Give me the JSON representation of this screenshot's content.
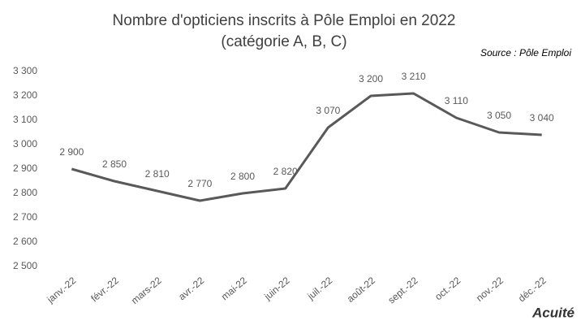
{
  "chart_data": {
    "type": "line",
    "title": "Nombre d'opticiens inscrits à Pôle Emploi en 2022",
    "subtitle": "(catégorie A, B, C)",
    "source": "Source : Pôle Emploi",
    "logo": "Acuité",
    "categories": [
      "janv.-22",
      "févr.-22",
      "mars-22",
      "avr.-22",
      "mai-22",
      "juin-22",
      "juil.-22",
      "août-22",
      "sept.-22",
      "oct.-22",
      "nov.-22",
      "déc.-22"
    ],
    "values": [
      2900,
      2850,
      2810,
      2770,
      2800,
      2820,
      3070,
      3200,
      3210,
      3110,
      3050,
      3040
    ],
    "value_labels": [
      "2 900",
      "2 850",
      "2 810",
      "2 770",
      "2 800",
      "2 820",
      "3 070",
      "3 200",
      "3 210",
      "3 110",
      "3 050",
      "3 040"
    ],
    "color": "#595959",
    "ylim": [
      2500,
      3300
    ],
    "yticks": [
      {
        "value": 2500,
        "label": "2 500"
      },
      {
        "value": 2600,
        "label": "2 600"
      },
      {
        "value": 2700,
        "label": "2 700"
      },
      {
        "value": 2800,
        "label": "2 800"
      },
      {
        "value": 2900,
        "label": "2 900"
      },
      {
        "value": 3000,
        "label": "3 000"
      },
      {
        "value": 3100,
        "label": "3 100"
      },
      {
        "value": 3200,
        "label": "3 200"
      },
      {
        "value": 3300,
        "label": "3 300"
      }
    ],
    "grid": false
  }
}
